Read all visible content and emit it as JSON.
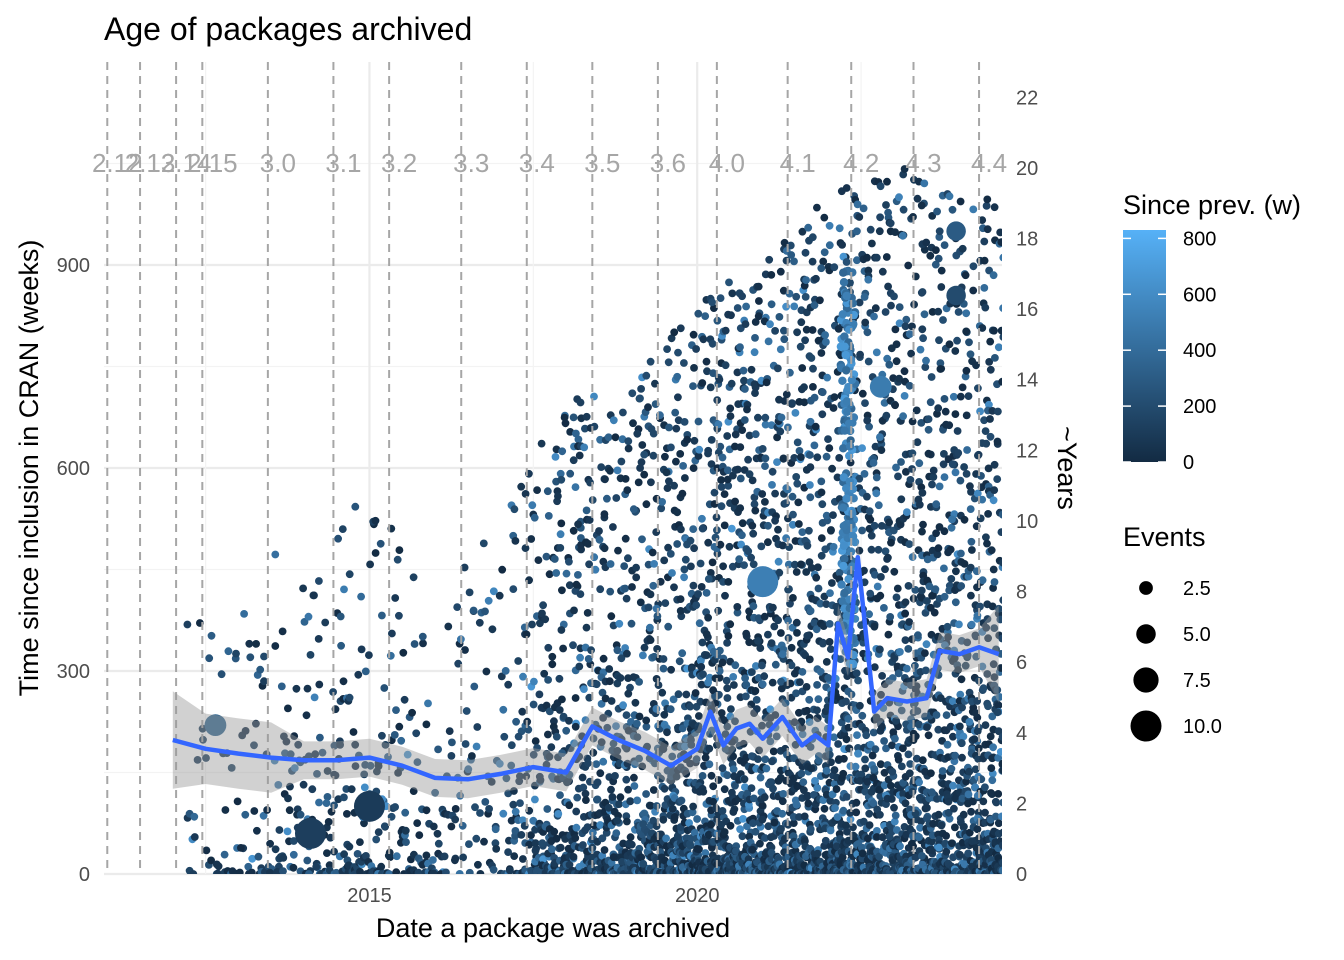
{
  "chart_data": {
    "type": "scatter",
    "title": "Age of packages archived",
    "xlabel": "Date a package was archived",
    "ylabel": "Time since inclusion in CRAN (weeks)",
    "y2label": "~Years",
    "xlim": [
      2010.95,
      2024.65
    ],
    "ylim": [
      0,
      1200
    ],
    "y2lim": [
      0,
      23
    ],
    "grid": true,
    "x_ticks": [
      {
        "value": 2015,
        "label": "2015"
      },
      {
        "value": 2020,
        "label": "2020"
      }
    ],
    "y_ticks": [
      0,
      300,
      600,
      900
    ],
    "y2_ticks": [
      0,
      2,
      4,
      6,
      8,
      10,
      12,
      14,
      16,
      18,
      20,
      22
    ],
    "r_releases": [
      {
        "label": "2.12",
        "x": 2011.0
      },
      {
        "label": "2.13",
        "x": 2011.5
      },
      {
        "label": "2.14",
        "x": 2012.05
      },
      {
        "label": "2.15",
        "x": 2012.45
      },
      {
        "label": "3.0",
        "x": 2013.45
      },
      {
        "label": "3.1",
        "x": 2014.45
      },
      {
        "label": "3.2",
        "x": 2015.3
      },
      {
        "label": "3.3",
        "x": 2016.4
      },
      {
        "label": "3.4",
        "x": 2017.4
      },
      {
        "label": "3.5",
        "x": 2018.4
      },
      {
        "label": "3.6",
        "x": 2019.4
      },
      {
        "label": "4.0",
        "x": 2020.3
      },
      {
        "label": "4.1",
        "x": 2021.38
      },
      {
        "label": "4.2",
        "x": 2022.35
      },
      {
        "label": "4.3",
        "x": 2023.3
      },
      {
        "label": "4.4",
        "x": 2024.3
      }
    ],
    "smooth_line": {
      "name": "smooth",
      "x": [
        2012.0,
        2012.5,
        2013.0,
        2013.5,
        2014.0,
        2014.5,
        2015.0,
        2015.5,
        2016.0,
        2016.5,
        2017.0,
        2017.5,
        2018.0,
        2018.4,
        2018.8,
        2019.2,
        2019.6,
        2020.0,
        2020.2,
        2020.4,
        2020.6,
        2020.8,
        2021.0,
        2021.3,
        2021.6,
        2021.8,
        2022.0,
        2022.15,
        2022.3,
        2022.45,
        2022.7,
        2022.9,
        2023.2,
        2023.5,
        2023.7,
        2024.0,
        2024.3,
        2024.6
      ],
      "y": [
        198,
        185,
        178,
        172,
        168,
        168,
        172,
        160,
        142,
        140,
        148,
        158,
        150,
        218,
        198,
        182,
        160,
        185,
        240,
        190,
        215,
        222,
        200,
        232,
        190,
        205,
        190,
        370,
        320,
        468,
        240,
        260,
        255,
        260,
        330,
        325,
        335,
        325
      ],
      "ci_halfwidth": 40,
      "color": "#3366FF"
    },
    "colorbar": {
      "title": "Since prev. (w)",
      "ticks": [
        0,
        200,
        400,
        600,
        800
      ],
      "range": [
        0,
        830
      ],
      "low_color": "#132B43",
      "high_color": "#56B1F7"
    },
    "size_legend": {
      "title": "Events",
      "values": [
        2.5,
        5.0,
        7.5,
        10.0
      ],
      "labels": [
        "2.5",
        "5.0",
        "7.5",
        "10.0"
      ]
    },
    "highlight_points": [
      {
        "x": 2012.65,
        "y": 220,
        "events": 6,
        "since_prev": 350
      },
      {
        "x": 2021.0,
        "y": 432,
        "events": 10,
        "since_prev": 520
      },
      {
        "x": 2022.8,
        "y": 720,
        "events": 6,
        "since_prev": 500
      },
      {
        "x": 2023.95,
        "y": 950,
        "events": 5,
        "since_prev": 300
      },
      {
        "x": 2023.95,
        "y": 855,
        "events": 5,
        "since_prev": 200
      },
      {
        "x": 2014.1,
        "y": 60,
        "events": 10,
        "since_prev": 120
      },
      {
        "x": 2015.0,
        "y": 100,
        "events": 10,
        "since_prev": 100
      }
    ],
    "density_profile": [
      {
        "x": 2012.3,
        "count": 30,
        "upper": 380
      },
      {
        "x": 2013.0,
        "count": 60,
        "upper": 420
      },
      {
        "x": 2014.0,
        "count": 110,
        "upper": 520
      },
      {
        "x": 2015.0,
        "count": 150,
        "upper": 560
      },
      {
        "x": 2016.0,
        "count": 80,
        "upper": 420
      },
      {
        "x": 2017.0,
        "count": 90,
        "upper": 520
      },
      {
        "x": 2018.0,
        "count": 400,
        "upper": 700
      },
      {
        "x": 2019.0,
        "count": 420,
        "upper": 720
      },
      {
        "x": 2020.0,
        "count": 650,
        "upper": 850
      },
      {
        "x": 2021.0,
        "count": 650,
        "upper": 900
      },
      {
        "x": 2022.0,
        "count": 700,
        "upper": 1000
      },
      {
        "x": 2023.0,
        "count": 700,
        "upper": 1050
      },
      {
        "x": 2024.0,
        "count": 650,
        "upper": 1000
      }
    ]
  }
}
